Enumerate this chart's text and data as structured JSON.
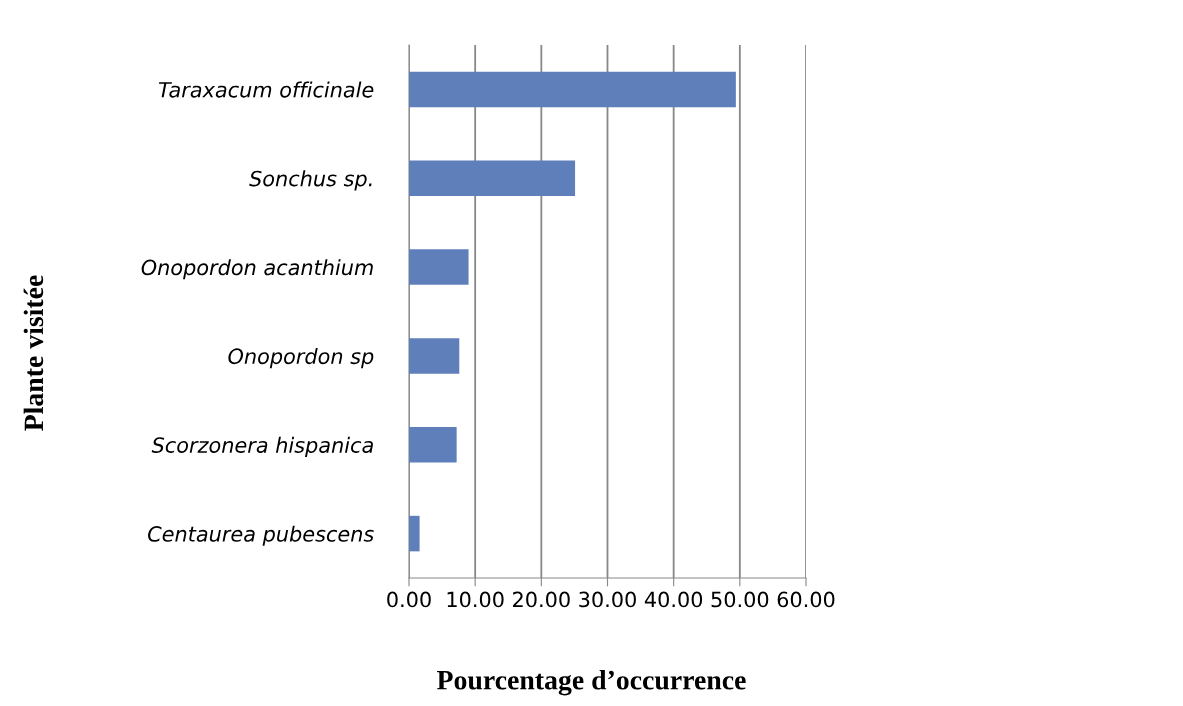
{
  "chart_data": {
    "type": "bar",
    "orientation": "horizontal",
    "xlabel": "Pourcentage d’occurrence",
    "ylabel": "Plante visitée",
    "categories": [
      "Taraxacum officinale",
      "Sonchus sp.",
      "Onopordon acanthium",
      "Onopordon sp",
      "Scorzonera hispanica",
      "Centaurea pubescens"
    ],
    "values": [
      49.4,
      25.1,
      9.0,
      7.6,
      7.2,
      1.6
    ],
    "color": "#5f7fbb",
    "xlim": [
      0,
      60
    ],
    "xticks": [
      {
        "value": 0,
        "label": "0.00"
      },
      {
        "value": 10,
        "label": "10.00"
      },
      {
        "value": 20,
        "label": "20.00"
      },
      {
        "value": 30,
        "label": "30.00"
      },
      {
        "value": 40,
        "label": "40.00"
      },
      {
        "value": 50,
        "label": "50.00"
      },
      {
        "value": 60,
        "label": "60.00"
      }
    ],
    "grid": "x",
    "legend": false
  }
}
